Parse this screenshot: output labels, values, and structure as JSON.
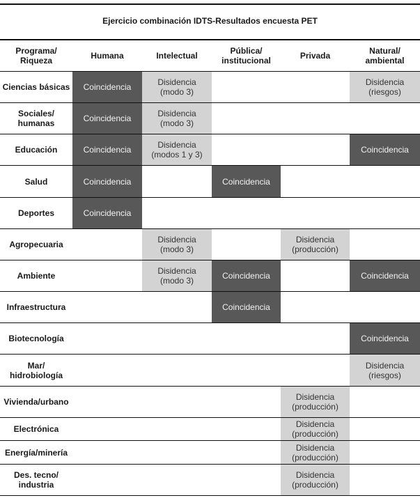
{
  "title": "Ejercicio combinación IDTS-Resultados encuesta PET",
  "columns": [
    "Programa/\nRiqueza",
    "Humana",
    "Intelectual",
    "Pública/\ninstitucional",
    "Privada",
    "Natural/\nambiental"
  ],
  "colors": {
    "coincidencia": "#585858",
    "disidencia": "#d3d3d3"
  },
  "rows": [
    {
      "label": "Ciencias básicas",
      "cells": [
        "Coincidencia",
        "Disidencia\n(modo 3)",
        "",
        "",
        "Disidencia\n(riesgos)"
      ]
    },
    {
      "label": "Sociales/\nhumanas",
      "cells": [
        "Coincidencia",
        "Disidencia\n(modo 3)",
        "",
        "",
        ""
      ]
    },
    {
      "label": "Educación",
      "cells": [
        "Coincidencia",
        "Disidencia\n(modos 1 y 3)",
        "",
        "",
        "Coincidencia"
      ]
    },
    {
      "label": "Salud",
      "cells": [
        "Coincidencia",
        "",
        "Coincidencia",
        "",
        ""
      ]
    },
    {
      "label": "Deportes",
      "cells": [
        "Coincidencia",
        "",
        "",
        "",
        ""
      ]
    },
    {
      "label": "Agropecuaria",
      "cells": [
        "",
        "Disidencia\n(modo 3)",
        "",
        "Disidencia\n(producción)",
        ""
      ]
    },
    {
      "label": "Ambiente",
      "cells": [
        "",
        "Disidencia\n(modo 3)",
        "Coincidencia",
        "",
        "Coincidencia"
      ]
    },
    {
      "label": "Infraestructura",
      "cells": [
        "",
        "",
        "Coincidencia",
        "",
        ""
      ]
    },
    {
      "label": "Biotecnología",
      "cells": [
        "",
        "",
        "",
        "",
        "Coincidencia"
      ]
    },
    {
      "label": "Mar/\nhidrobiología",
      "cells": [
        "",
        "",
        "",
        "",
        "Disidencia\n(riesgos)"
      ]
    },
    {
      "label": "Vivienda/urbano",
      "cells": [
        "",
        "",
        "",
        "Disidencia\n(producción)",
        ""
      ]
    },
    {
      "label": "Electrónica",
      "cells": [
        "",
        "",
        "",
        "Disidencia\n(producción)",
        ""
      ]
    },
    {
      "label": "Energía/minería",
      "cells": [
        "",
        "",
        "",
        "Disidencia\n(producción)",
        ""
      ]
    },
    {
      "label": "Des. tecno/\nindustria",
      "cells": [
        "",
        "",
        "",
        "Disidencia\n(producción)",
        ""
      ]
    }
  ]
}
